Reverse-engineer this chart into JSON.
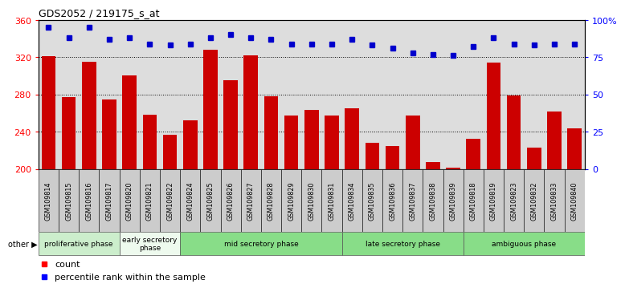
{
  "title": "GDS2052 / 219175_s_at",
  "samples": [
    "GSM109814",
    "GSM109815",
    "GSM109816",
    "GSM109817",
    "GSM109820",
    "GSM109821",
    "GSM109822",
    "GSM109824",
    "GSM109825",
    "GSM109826",
    "GSM109827",
    "GSM109828",
    "GSM109829",
    "GSM109830",
    "GSM109831",
    "GSM109834",
    "GSM109835",
    "GSM109836",
    "GSM109837",
    "GSM109838",
    "GSM109839",
    "GSM109818",
    "GSM109819",
    "GSM109823",
    "GSM109832",
    "GSM109833",
    "GSM109840"
  ],
  "counts": [
    321,
    277,
    315,
    275,
    300,
    258,
    237,
    252,
    328,
    295,
    322,
    278,
    257,
    263,
    257,
    265,
    228,
    225,
    257,
    207,
    201,
    232,
    314,
    279,
    223,
    262,
    244
  ],
  "percentile_ranks": [
    95,
    88,
    95,
    87,
    88,
    84,
    83,
    84,
    88,
    90,
    88,
    87,
    84,
    84,
    84,
    87,
    83,
    81,
    78,
    77,
    76,
    82,
    88,
    84,
    83,
    84,
    84
  ],
  "bar_color": "#cc0000",
  "dot_color": "#0000cc",
  "ylim_left": [
    200,
    360
  ],
  "ylim_right": [
    0,
    100
  ],
  "yticks_left": [
    200,
    240,
    280,
    320,
    360
  ],
  "yticks_right": [
    0,
    25,
    50,
    75,
    100
  ],
  "ytick_right_labels": [
    "0",
    "25",
    "50",
    "75",
    "100%"
  ],
  "plot_bg_color": "#dddddd",
  "tick_label_bg": "#cccccc",
  "phases": [
    {
      "label": "proliferative phase",
      "color": "#cceecc",
      "start": 0,
      "end": 3
    },
    {
      "label": "early secretory\nphase",
      "color": "#eefaee",
      "start": 4,
      "end": 6
    },
    {
      "label": "mid secretory phase",
      "color": "#88dd88",
      "start": 7,
      "end": 14
    },
    {
      "label": "late secretory phase",
      "color": "#88dd88",
      "start": 15,
      "end": 20
    },
    {
      "label": "ambiguous phase",
      "color": "#88dd88",
      "start": 21,
      "end": 26
    }
  ]
}
